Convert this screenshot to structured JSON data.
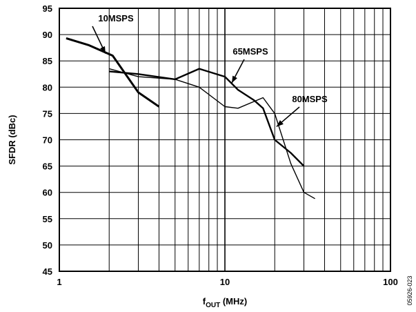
{
  "chart_data": {
    "type": "line",
    "xlabel": "f",
    "xlabel_sub": "OUT",
    "xlabel_unit": "(MHz)",
    "ylabel": "SFDR (dBc)",
    "xscale": "log",
    "xlim": [
      1,
      100
    ],
    "ylim": [
      45,
      95
    ],
    "x_ticks": [
      "1",
      "10",
      "100"
    ],
    "y_ticks": [
      "45",
      "50",
      "55",
      "60",
      "65",
      "70",
      "75",
      "80",
      "85",
      "90",
      "95"
    ],
    "grid": true,
    "figure_id": "05926-023",
    "series": [
      {
        "name": "10MSPS",
        "x": [
          1.1,
          1.5,
          2.1,
          3.0,
          4.0
        ],
        "y": [
          89.3,
          88.0,
          86.0,
          79.0,
          76.3
        ]
      },
      {
        "name": "65MSPS",
        "x": [
          2.0,
          3.0,
          5.0,
          7.0,
          10.0,
          12.0,
          15.0,
          17.0,
          20.0,
          25.0,
          30.0
        ],
        "y": [
          83.0,
          82.5,
          81.5,
          83.5,
          82.0,
          79.5,
          77.5,
          76.0,
          70.0,
          67.5,
          65.0
        ]
      },
      {
        "name": "80MSPS",
        "x": [
          2.0,
          3.0,
          5.0,
          7.0,
          10.0,
          12.0,
          17.0,
          20.0,
          25.0,
          30.0,
          35.0
        ],
        "y": [
          83.5,
          82.0,
          81.5,
          80.0,
          76.3,
          76.0,
          78.0,
          75.0,
          65.5,
          60.0,
          58.8
        ]
      }
    ],
    "annotations": [
      {
        "text": "10MSPS",
        "arrow_to": [
          1.9,
          86.4
        ]
      },
      {
        "text": "65MSPS",
        "arrow_to": [
          11.0,
          80.8
        ]
      },
      {
        "text": "80MSPS",
        "arrow_to": [
          20.5,
          72.5
        ]
      }
    ]
  }
}
